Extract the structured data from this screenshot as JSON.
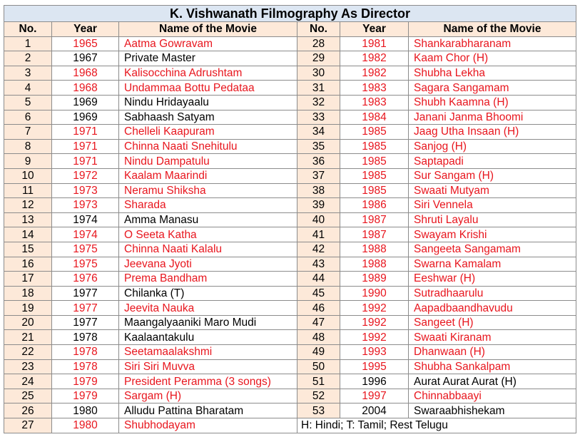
{
  "title": "K. Vishwanath Filmography As Director",
  "headers": {
    "no": "No.",
    "year": "Year",
    "movie": "Name of the Movie"
  },
  "colors": {
    "red": "#e8161e",
    "black": "#000000",
    "title_bg": "#dce6f2",
    "number_bg": "#fde9d9"
  },
  "left": [
    {
      "no": "1",
      "year": "1965",
      "movie": "Aatma Gowravam",
      "color": "red"
    },
    {
      "no": "2",
      "year": "1967",
      "movie": "Private Master",
      "color": "black"
    },
    {
      "no": "3",
      "year": "1968",
      "movie": "Kalisocchina Adrushtam",
      "color": "red"
    },
    {
      "no": "4",
      "year": "1968",
      "movie": "Undammaa Bottu Pedataa",
      "color": "red"
    },
    {
      "no": "5",
      "year": "1969",
      "movie": "Nindu Hridayaalu",
      "color": "black"
    },
    {
      "no": "6",
      "year": "1969",
      "movie": "Sabhaash Satyam",
      "color": "black"
    },
    {
      "no": "7",
      "year": "1971",
      "movie": "Chelleli Kaapuram",
      "color": "red"
    },
    {
      "no": "8",
      "year": "1971",
      "movie": "Chinna Naati Snehitulu",
      "color": "red"
    },
    {
      "no": "9",
      "year": "1971",
      "movie": "Nindu Dampatulu",
      "color": "red"
    },
    {
      "no": "10",
      "year": "1972",
      "movie": "Kaalam Maarindi",
      "color": "red"
    },
    {
      "no": "11",
      "year": "1973",
      "movie": "Neramu Shiksha",
      "color": "red"
    },
    {
      "no": "12",
      "year": "1973",
      "movie": "Sharada",
      "color": "red"
    },
    {
      "no": "13",
      "year": "1974",
      "movie": "Amma Manasu",
      "color": "black"
    },
    {
      "no": "14",
      "year": "1974",
      "movie": "O Seeta Katha",
      "color": "red"
    },
    {
      "no": "15",
      "year": "1975",
      "movie": "Chinna Naati Kalalu",
      "color": "red"
    },
    {
      "no": "16",
      "year": "1975",
      "movie": "Jeevana Jyoti",
      "color": "red"
    },
    {
      "no": "17",
      "year": "1976",
      "movie": "Prema Bandham",
      "color": "red"
    },
    {
      "no": "18",
      "year": "1977",
      "movie": "Chilanka (T)",
      "color": "black"
    },
    {
      "no": "19",
      "year": "1977",
      "movie": "Jeevita Nauka",
      "color": "red"
    },
    {
      "no": "20",
      "year": "1977",
      "movie": "Maangalyaaniki Maro Mudi",
      "color": "black"
    },
    {
      "no": "21",
      "year": "1978",
      "movie": "Kaalaantakulu",
      "color": "black"
    },
    {
      "no": "22",
      "year": "1978",
      "movie": "Seetamaalakshmi",
      "color": "red"
    },
    {
      "no": "23",
      "year": "1978",
      "movie": "Siri Siri Muvva",
      "color": "red"
    },
    {
      "no": "24",
      "year": "1979",
      "movie": "President Peramma (3 songs)",
      "color": "red"
    },
    {
      "no": "25",
      "year": "1979",
      "movie": "Sargam (H)",
      "color": "red"
    },
    {
      "no": "26",
      "year": "1980",
      "movie": "Alludu Pattina Bharatam",
      "color": "black"
    },
    {
      "no": "27",
      "year": "1980",
      "movie": "Shubhodayam",
      "color": "red"
    }
  ],
  "right": [
    {
      "no": "28",
      "year": "1981",
      "movie": "Shankarabharanam",
      "color": "red"
    },
    {
      "no": "29",
      "year": "1982",
      "movie": "Kaam Chor (H)",
      "color": "red"
    },
    {
      "no": "30",
      "year": "1982",
      "movie": "Shubha Lekha",
      "color": "red"
    },
    {
      "no": "31",
      "year": "1983",
      "movie": "Sagara Sangamam",
      "color": "red"
    },
    {
      "no": "32",
      "year": "1983",
      "movie": "Shubh Kaamna (H)",
      "color": "red"
    },
    {
      "no": "33",
      "year": "1984",
      "movie": "Janani Janma Bhoomi",
      "color": "red"
    },
    {
      "no": "34",
      "year": "1985",
      "movie": "Jaag Utha Insaan (H)",
      "color": "red"
    },
    {
      "no": "35",
      "year": "1985",
      "movie": "Sanjog (H)",
      "color": "red"
    },
    {
      "no": "36",
      "year": "1985",
      "movie": "Saptapadi",
      "color": "red"
    },
    {
      "no": "37",
      "year": "1985",
      "movie": "Sur Sangam (H)",
      "color": "red"
    },
    {
      "no": "38",
      "year": "1985",
      "movie": "Swaati Mutyam",
      "color": "red"
    },
    {
      "no": "39",
      "year": "1986",
      "movie": "Siri Vennela",
      "color": "red"
    },
    {
      "no": "40",
      "year": "1987",
      "movie": "Shruti Layalu",
      "color": "red"
    },
    {
      "no": "41",
      "year": "1987",
      "movie": "Swayam Krishi",
      "color": "red"
    },
    {
      "no": "42",
      "year": "1988",
      "movie": "Sangeeta Sangamam",
      "color": "red"
    },
    {
      "no": "43",
      "year": "1988",
      "movie": "Swarna Kamalam",
      "color": "red"
    },
    {
      "no": "44",
      "year": "1989",
      "movie": "Eeshwar (H)",
      "color": "red"
    },
    {
      "no": "45",
      "year": "1990",
      "movie": "Sutradhaarulu",
      "color": "red"
    },
    {
      "no": "46",
      "year": "1992",
      "movie": "Aapadbaandhavudu",
      "color": "red"
    },
    {
      "no": "47",
      "year": "1992",
      "movie": "Sangeet (H)",
      "color": "red"
    },
    {
      "no": "48",
      "year": "1992",
      "movie": "Swaati Kiranam",
      "color": "red"
    },
    {
      "no": "49",
      "year": "1993",
      "movie": "Dhanwaan (H)",
      "color": "red"
    },
    {
      "no": "50",
      "year": "1995",
      "movie": "Shubha Sankalpam",
      "color": "red"
    },
    {
      "no": "51",
      "year": "1996",
      "movie": "Aurat Aurat Aurat (H)",
      "color": "black"
    },
    {
      "no": "52",
      "year": "1997",
      "movie": "Chinnabbaayi",
      "color": "red"
    },
    {
      "no": "53",
      "year": "2004",
      "movie": "Swaraabhishekam",
      "color": "black"
    }
  ],
  "legend_note": "H: Hindi; T: Tamil; Rest Telugu"
}
